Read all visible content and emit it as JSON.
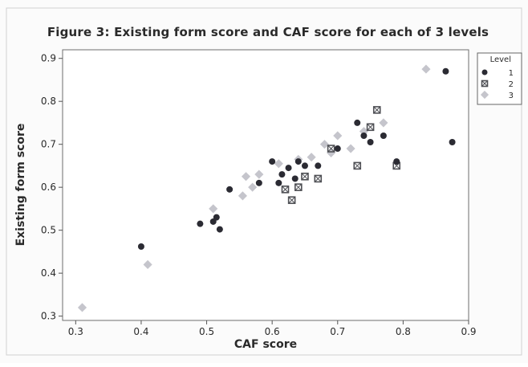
{
  "chart_data": {
    "type": "scatter",
    "title": "Figure 3: Existing form score and CAF score for each of 3 levels",
    "xlabel": "CAF score",
    "ylabel": "Existing form score",
    "xlim": [
      0.28,
      0.9
    ],
    "ylim": [
      0.29,
      0.92
    ],
    "x_ticks": [
      0.3,
      0.4,
      0.5,
      0.6,
      0.7,
      0.8,
      0.9
    ],
    "x_tick_labels": [
      "0.3",
      "0.4",
      "0.5",
      "0.6",
      "0.7",
      "0.8",
      "0.9"
    ],
    "y_ticks": [
      0.3,
      0.4,
      0.5,
      0.6,
      0.7,
      0.8,
      0.9
    ],
    "y_tick_labels": [
      "0.3",
      "0.4",
      "0.5",
      "0.6",
      "0.7",
      "0.8",
      "0.9"
    ],
    "grid": false,
    "legend": {
      "title": "Level",
      "placement": "right"
    },
    "series": [
      {
        "name": "1",
        "marker": "circle",
        "color": "#2b2b33",
        "x": [
          0.4,
          0.49,
          0.51,
          0.515,
          0.52,
          0.535,
          0.58,
          0.6,
          0.61,
          0.615,
          0.625,
          0.635,
          0.64,
          0.65,
          0.67,
          0.7,
          0.73,
          0.74,
          0.75,
          0.77,
          0.79,
          0.865,
          0.875
        ],
        "y": [
          0.462,
          0.515,
          0.52,
          0.53,
          0.502,
          0.595,
          0.61,
          0.66,
          0.61,
          0.63,
          0.645,
          0.62,
          0.66,
          0.65,
          0.65,
          0.69,
          0.75,
          0.72,
          0.705,
          0.72,
          0.66,
          0.87,
          0.705
        ]
      },
      {
        "name": "2",
        "marker": "square",
        "color": "#4f5055",
        "x": [
          0.62,
          0.63,
          0.64,
          0.65,
          0.67,
          0.69,
          0.73,
          0.75,
          0.76,
          0.79
        ],
        "y": [
          0.595,
          0.57,
          0.6,
          0.625,
          0.62,
          0.69,
          0.65,
          0.74,
          0.78,
          0.65
        ]
      },
      {
        "name": "3",
        "marker": "diamond",
        "color": "#bcbcc4",
        "x": [
          0.31,
          0.41,
          0.51,
          0.555,
          0.56,
          0.57,
          0.58,
          0.61,
          0.64,
          0.66,
          0.68,
          0.69,
          0.7,
          0.72,
          0.74,
          0.77,
          0.835
        ],
        "y": [
          0.32,
          0.42,
          0.55,
          0.58,
          0.625,
          0.6,
          0.63,
          0.655,
          0.665,
          0.67,
          0.7,
          0.68,
          0.72,
          0.69,
          0.73,
          0.75,
          0.875
        ]
      }
    ]
  }
}
